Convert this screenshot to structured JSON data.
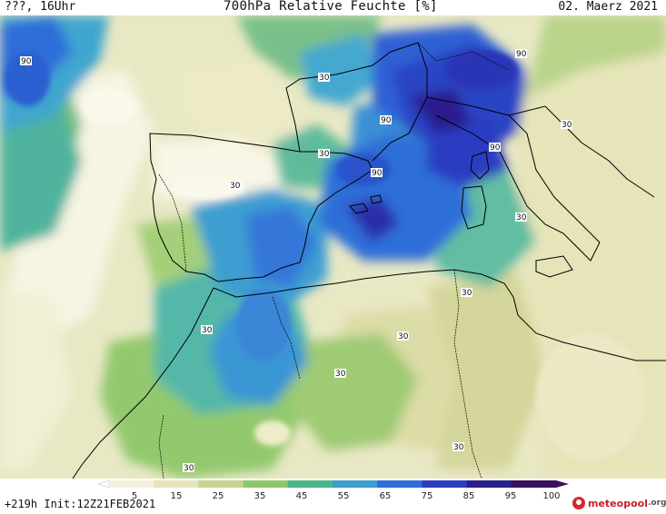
{
  "header": {
    "left": "???, 16Uhr",
    "center": "700hPa Relative Feuchte [%]",
    "right": "02. Maerz 2021"
  },
  "map": {
    "field": "relative-humidity-700hPa",
    "contour_labels": [
      {
        "text": "90",
        "anchor": "north-atlantic-west"
      },
      {
        "text": "30",
        "anchor": "bay-of-biscay"
      },
      {
        "text": "90",
        "anchor": "alps-north"
      },
      {
        "text": "90",
        "anchor": "gulf-of-lion"
      },
      {
        "text": "90",
        "anchor": "corsica"
      },
      {
        "text": "30",
        "anchor": "adriatic"
      },
      {
        "text": "30",
        "anchor": "northern-spain"
      },
      {
        "text": "30",
        "anchor": "north-portugal"
      },
      {
        "text": "90",
        "anchor": "balearic-sea"
      },
      {
        "text": "30",
        "anchor": "tyrrhenian"
      },
      {
        "text": "30",
        "anchor": "tunisia"
      },
      {
        "text": "30",
        "anchor": "morocco-atlas"
      },
      {
        "text": "30",
        "anchor": "algeria-north"
      },
      {
        "text": "30",
        "anchor": "algeria-central"
      },
      {
        "text": "30",
        "anchor": "libya-west"
      },
      {
        "text": "30",
        "anchor": "western-sahara"
      }
    ],
    "colors": {
      "land_outline": "#000000",
      "background": "#efeed0"
    }
  },
  "colorbar": {
    "ticks": [
      "5",
      "15",
      "25",
      "35",
      "45",
      "55",
      "65",
      "75",
      "85",
      "95",
      "100"
    ],
    "colors": [
      "#ffffff",
      "#f3f1dc",
      "#e6e4b8",
      "#c8d28e",
      "#8ec86c",
      "#4cb58a",
      "#3b9fd0",
      "#2f6ed8",
      "#2c3ec2",
      "#2a1f8e",
      "#3a0f5e"
    ]
  },
  "footer": {
    "left": "+219h Init:12Z21FEB2021",
    "logo_name": "meteopool",
    "logo_tld": ".org"
  }
}
